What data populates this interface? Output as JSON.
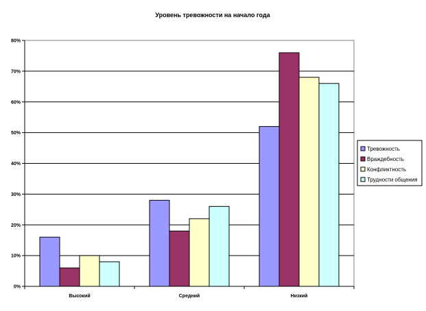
{
  "chart_data": {
    "type": "bar",
    "title": "Уровень тревожности на начало года",
    "categories": [
      "Высокий",
      "Средний",
      "Низкий"
    ],
    "series": [
      {
        "name": "Тревожность",
        "values": [
          16,
          28,
          52
        ],
        "color": "#9999ff"
      },
      {
        "name": "Враждебность",
        "values": [
          6,
          18,
          76
        ],
        "color": "#993366"
      },
      {
        "name": "Конфликтность",
        "values": [
          10,
          22,
          68
        ],
        "color": "#ffffcc"
      },
      {
        "name": "Трудности общения",
        "values": [
          8,
          26,
          66
        ],
        "color": "#ccffff"
      }
    ],
    "ylim": [
      0,
      80
    ],
    "yticks": [
      "0%",
      "10%",
      "20%",
      "30%",
      "40%",
      "50%",
      "60%",
      "70%",
      "80%"
    ],
    "grid": true,
    "legend_position": "right"
  }
}
